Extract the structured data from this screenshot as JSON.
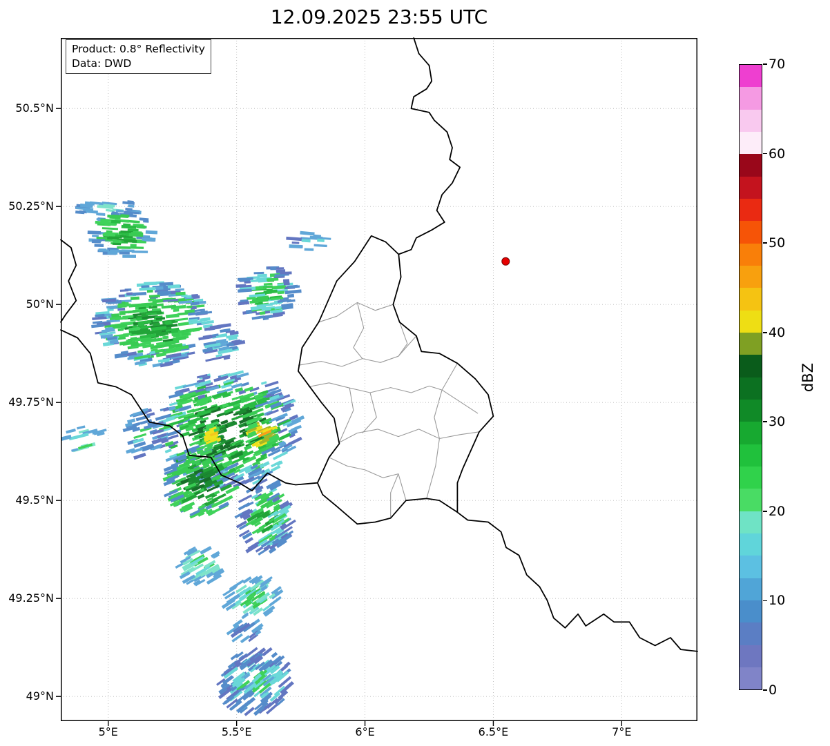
{
  "title": "12.09.2025 23:55 UTC",
  "info_box": {
    "line1": "Product: 0.8° Reflectivity",
    "line2": "Data: DWD"
  },
  "colorbar": {
    "label": "dBZ",
    "min": 0,
    "max": 70,
    "ticks": [
      {
        "label": "0",
        "value": 0
      },
      {
        "label": "10",
        "value": 10
      },
      {
        "label": "20",
        "value": 20
      },
      {
        "label": "30",
        "value": 30
      },
      {
        "label": "40",
        "value": 40
      },
      {
        "label": "50",
        "value": 50
      },
      {
        "label": "60",
        "value": 60
      },
      {
        "label": "70",
        "value": 70
      }
    ],
    "colors": [
      "#8084c8",
      "#6e77c0",
      "#5b7ec4",
      "#4a8ecb",
      "#50a5d7",
      "#5cc0e2",
      "#60d5da",
      "#6fe3c5",
      "#49dc64",
      "#30d24b",
      "#20c13c",
      "#17a930",
      "#108a27",
      "#0c7121",
      "#0a5c1b",
      "#7fa023",
      "#eede14",
      "#f5c312",
      "#f8a00e",
      "#f97f09",
      "#f65407",
      "#ea2a12",
      "#c4131e",
      "#99071a",
      "#fdedf9",
      "#f9c9ef",
      "#f59ae3",
      "#ee3fd0"
    ]
  },
  "map": {
    "extent": {
      "lon_min": 4.815,
      "lon_max": 7.295,
      "lat_min": 48.937,
      "lat_max": 50.68
    },
    "lat_ticks": [
      {
        "label": "50.5°N",
        "value": 50.5
      },
      {
        "label": "50.25°N",
        "value": 50.25
      },
      {
        "label": "50°N",
        "value": 50.0
      },
      {
        "label": "49.75°N",
        "value": 49.75
      },
      {
        "label": "49.5°N",
        "value": 49.5
      },
      {
        "label": "49.25°N",
        "value": 49.25
      },
      {
        "label": "49°N",
        "value": 49.0
      }
    ],
    "lon_ticks": [
      {
        "label": "5°E",
        "value": 5.0
      },
      {
        "label": "5.5°E",
        "value": 5.5
      },
      {
        "label": "6°E",
        "value": 6.0
      },
      {
        "label": "6.5°E",
        "value": 6.5
      },
      {
        "label": "7°E",
        "value": 7.0
      }
    ],
    "grid_color": "#a8a8a8",
    "radar_site": {
      "lon": 6.548,
      "lat": 50.11,
      "color": "#e60000",
      "edge": "#6e0000"
    },
    "borders": {
      "country_color": "#000000",
      "district_color": "#9a9a9a",
      "country": [
        [
          [
            6.19,
            50.68
          ],
          [
            6.21,
            50.64
          ],
          [
            6.25,
            50.61
          ],
          [
            6.26,
            50.57
          ],
          [
            6.24,
            50.55
          ],
          [
            6.19,
            50.53
          ],
          [
            6.18,
            50.5
          ],
          [
            6.25,
            50.49
          ],
          [
            6.27,
            50.47
          ],
          [
            6.32,
            50.44
          ],
          [
            6.34,
            50.4
          ],
          [
            6.33,
            50.37
          ],
          [
            6.37,
            50.35
          ],
          [
            6.34,
            50.31
          ],
          [
            6.3,
            50.28
          ],
          [
            6.28,
            50.24
          ],
          [
            6.31,
            50.21
          ],
          [
            6.26,
            50.19
          ],
          [
            6.2,
            50.17
          ],
          [
            6.18,
            50.14
          ],
          [
            6.131,
            50.128
          ]
        ],
        [
          [
            6.131,
            50.128
          ],
          [
            6.14,
            50.07
          ],
          [
            6.11,
            50.0
          ],
          [
            6.135,
            49.955
          ],
          [
            6.2,
            49.92
          ],
          [
            6.22,
            49.88
          ],
          [
            6.29,
            49.875
          ],
          [
            6.36,
            49.85
          ],
          [
            6.43,
            49.81
          ],
          [
            6.48,
            49.77
          ],
          [
            6.5,
            49.715
          ],
          [
            6.445,
            49.675
          ],
          [
            6.38,
            49.58
          ],
          [
            6.36,
            49.545
          ],
          [
            6.36,
            49.47
          ],
          [
            6.29,
            49.5
          ],
          [
            6.24,
            49.505
          ],
          [
            6.16,
            49.5
          ],
          [
            6.1,
            49.455
          ],
          [
            6.04,
            49.445
          ],
          [
            5.97,
            49.44
          ],
          [
            5.89,
            49.485
          ],
          [
            5.835,
            49.515
          ],
          [
            5.815,
            49.545
          ],
          [
            5.86,
            49.61
          ],
          [
            5.9,
            49.645
          ],
          [
            5.88,
            49.71
          ],
          [
            5.83,
            49.75
          ],
          [
            5.74,
            49.83
          ],
          [
            5.755,
            49.89
          ],
          [
            5.82,
            49.955
          ],
          [
            5.89,
            50.06
          ],
          [
            5.96,
            50.11
          ],
          [
            6.025,
            50.175
          ],
          [
            6.08,
            50.16
          ],
          [
            6.131,
            50.128
          ]
        ],
        [
          [
            4.815,
            49.935
          ],
          [
            4.88,
            49.915
          ],
          [
            4.93,
            49.875
          ],
          [
            4.96,
            49.8
          ],
          [
            5.03,
            49.79
          ],
          [
            5.09,
            49.77
          ],
          [
            5.16,
            49.7
          ],
          [
            5.24,
            49.69
          ],
          [
            5.29,
            49.665
          ],
          [
            5.315,
            49.615
          ],
          [
            5.4,
            49.61
          ],
          [
            5.44,
            49.565
          ],
          [
            5.51,
            49.545
          ],
          [
            5.56,
            49.525
          ],
          [
            5.62,
            49.57
          ],
          [
            5.69,
            49.545
          ],
          [
            5.73,
            49.54
          ],
          [
            5.815,
            49.545
          ]
        ],
        [
          [
            4.815,
            50.165
          ],
          [
            4.855,
            50.145
          ],
          [
            4.875,
            50.1
          ],
          [
            4.845,
            50.06
          ],
          [
            4.875,
            50.01
          ],
          [
            4.835,
            49.975
          ],
          [
            4.815,
            49.955
          ]
        ],
        [
          [
            6.36,
            49.47
          ],
          [
            6.4,
            49.45
          ],
          [
            6.48,
            49.445
          ],
          [
            6.53,
            49.42
          ],
          [
            6.55,
            49.38
          ],
          [
            6.6,
            49.36
          ],
          [
            6.63,
            49.31
          ],
          [
            6.68,
            49.28
          ],
          [
            6.71,
            49.245
          ],
          [
            6.735,
            49.2
          ],
          [
            6.78,
            49.175
          ],
          [
            6.83,
            49.21
          ],
          [
            6.86,
            49.18
          ],
          [
            6.93,
            49.21
          ],
          [
            6.97,
            49.19
          ],
          [
            7.03,
            49.19
          ],
          [
            7.07,
            49.15
          ],
          [
            7.13,
            49.13
          ],
          [
            7.19,
            49.15
          ],
          [
            7.23,
            49.12
          ],
          [
            7.295,
            49.115
          ]
        ]
      ],
      "districts": [
        [
          [
            5.82,
            49.955
          ],
          [
            5.89,
            49.97
          ],
          [
            5.97,
            50.005
          ],
          [
            6.04,
            49.985
          ],
          [
            6.11,
            50.0
          ]
        ],
        [
          [
            5.74,
            49.845
          ],
          [
            5.83,
            49.855
          ],
          [
            5.91,
            49.842
          ],
          [
            5.99,
            49.862
          ],
          [
            6.06,
            49.852
          ],
          [
            6.13,
            49.868
          ],
          [
            6.2,
            49.92
          ]
        ],
        [
          [
            5.97,
            50.005
          ],
          [
            5.995,
            49.94
          ],
          [
            5.955,
            49.89
          ],
          [
            5.99,
            49.862
          ]
        ],
        [
          [
            5.78,
            49.79
          ],
          [
            5.86,
            49.8
          ],
          [
            5.94,
            49.787
          ],
          [
            6.02,
            49.775
          ],
          [
            6.1,
            49.788
          ],
          [
            6.18,
            49.775
          ],
          [
            6.25,
            49.792
          ],
          [
            6.3,
            49.782
          ],
          [
            6.36,
            49.85
          ]
        ],
        [
          [
            5.9,
            49.648
          ],
          [
            5.97,
            49.672
          ],
          [
            6.05,
            49.682
          ],
          [
            6.13,
            49.663
          ],
          [
            6.21,
            49.682
          ],
          [
            6.29,
            49.658
          ],
          [
            6.37,
            49.668
          ],
          [
            6.445,
            49.675
          ]
        ],
        [
          [
            5.86,
            49.61
          ],
          [
            5.93,
            49.588
          ],
          [
            6.0,
            49.578
          ],
          [
            6.07,
            49.558
          ],
          [
            6.13,
            49.568
          ],
          [
            6.16,
            49.5
          ]
        ],
        [
          [
            6.3,
            49.782
          ],
          [
            6.27,
            49.712
          ],
          [
            6.29,
            49.658
          ],
          [
            6.275,
            49.588
          ],
          [
            6.24,
            49.505
          ]
        ],
        [
          [
            6.02,
            49.775
          ],
          [
            6.045,
            49.712
          ],
          [
            5.99,
            49.672
          ]
        ],
        [
          [
            6.13,
            49.868
          ],
          [
            6.165,
            49.9
          ],
          [
            6.135,
            49.955
          ]
        ],
        [
          [
            6.3,
            49.782
          ],
          [
            6.37,
            49.752
          ],
          [
            6.44,
            49.722
          ]
        ],
        [
          [
            6.13,
            49.568
          ],
          [
            6.1,
            49.52
          ],
          [
            6.1,
            49.455
          ]
        ],
        [
          [
            5.94,
            49.787
          ],
          [
            5.955,
            49.73
          ],
          [
            5.9,
            49.648
          ]
        ]
      ]
    }
  },
  "radar_echoes": {
    "clusters": [
      {
        "seed": 11,
        "lon": 5.008,
        "lat": 50.245,
        "rx_deg": 0.148,
        "ry_deg": 0.022,
        "n": 22,
        "core": [
          "#63d6d6",
          "#78e2c8"
        ],
        "mid": [
          "#58a3d6"
        ],
        "outer": [
          "#4c86c8"
        ]
      },
      {
        "seed": 12,
        "lon": 5.056,
        "lat": 50.183,
        "rx_deg": 0.114,
        "ry_deg": 0.066,
        "n": 90,
        "core": [
          "#1fb83a",
          "#17a02e"
        ],
        "mid": [
          "#2fc94a",
          "#35d052"
        ],
        "outer": [
          "#58a3d6",
          "#4c86c8"
        ]
      },
      {
        "seed": 13,
        "lon": 5.177,
        "lat": 49.95,
        "rx_deg": 0.222,
        "ry_deg": 0.106,
        "n": 300,
        "core": [
          "#17a02e",
          "#1fb83a",
          "#0f8426"
        ],
        "mid": [
          "#2fc94a",
          "#35d052"
        ],
        "outer": [
          "#4c86c8",
          "#58a3d6",
          "#5b6fbe",
          "#63d6d6"
        ]
      },
      {
        "seed": 14,
        "lon": 5.44,
        "lat": 49.901,
        "rx_deg": 0.067,
        "ry_deg": 0.048,
        "n": 40,
        "core": [
          "#58a3d6"
        ],
        "mid": [
          "#4c86c8",
          "#63d6d6"
        ],
        "outer": [
          "#5b6fbe"
        ]
      },
      {
        "seed": 15,
        "lon": 5.62,
        "lat": 50.03,
        "rx_deg": 0.108,
        "ry_deg": 0.068,
        "n": 95,
        "core": [
          "#1fb83a",
          "#2fc94a"
        ],
        "mid": [
          "#35d052",
          "#63d6d6"
        ],
        "outer": [
          "#4c86c8",
          "#5b6fbe"
        ]
      },
      {
        "seed": 16,
        "lon": 5.79,
        "lat": 50.16,
        "rx_deg": 0.086,
        "ry_deg": 0.031,
        "n": 14,
        "core": [
          "#63d6d6"
        ],
        "mid": [
          "#58a3d6"
        ],
        "outer": [
          "#5b6fbe"
        ]
      },
      {
        "seed": 17,
        "lon": 5.466,
        "lat": 49.682,
        "rx_deg": 0.274,
        "ry_deg": 0.148,
        "n": 430,
        "core": [
          "#17a02e",
          "#0f8426",
          "#0b671e"
        ],
        "mid": [
          "#2fc94a",
          "#35d052",
          "#1fb83a"
        ],
        "outer": [
          "#4c86c8",
          "#58a3d6",
          "#5b6fbe",
          "#63d6d6"
        ]
      },
      {
        "seed": 18,
        "lon": 5.405,
        "lat": 49.668,
        "rx_deg": 0.02,
        "ry_deg": 0.026,
        "n": 22,
        "core": [
          "#efe012",
          "#f4c411"
        ],
        "mid": [
          "#efe012",
          "#9fb31c"
        ],
        "outer": [
          "#35d052"
        ]
      },
      {
        "seed": 19,
        "lon": 5.597,
        "lat": 49.668,
        "rx_deg": 0.051,
        "ry_deg": 0.044,
        "n": 40,
        "core": [
          "#efe012",
          "#f4c411",
          "#f89d0c"
        ],
        "mid": [
          "#efe012",
          "#9fb31c"
        ],
        "outer": [
          "#35d052",
          "#2fc94a"
        ]
      },
      {
        "seed": 20,
        "lon": 4.904,
        "lat": 49.656,
        "rx_deg": 0.078,
        "ry_deg": 0.033,
        "n": 16,
        "core": [
          "#63d6d6"
        ],
        "mid": [
          "#78e2c8",
          "#35d052"
        ],
        "outer": [
          "#58a3d6"
        ]
      },
      {
        "seed": 21,
        "lon": 5.139,
        "lat": 49.668,
        "rx_deg": 0.071,
        "ry_deg": 0.067,
        "n": 35,
        "core": [
          "#35d052",
          "#63d6d6"
        ],
        "mid": [
          "#4c86c8"
        ],
        "outer": [
          "#5b6fbe",
          "#58a3d6"
        ]
      },
      {
        "seed": 22,
        "lon": 5.36,
        "lat": 49.55,
        "rx_deg": 0.132,
        "ry_deg": 0.091,
        "n": 150,
        "core": [
          "#0b671e",
          "#0f8426"
        ],
        "mid": [
          "#17a02e",
          "#2fc94a"
        ],
        "outer": [
          "#4c86c8",
          "#35d052"
        ]
      },
      {
        "seed": 23,
        "lon": 5.613,
        "lat": 49.458,
        "rx_deg": 0.099,
        "ry_deg": 0.09,
        "n": 110,
        "core": [
          "#17a02e",
          "#2fc94a"
        ],
        "mid": [
          "#35d052",
          "#63d6d6"
        ],
        "outer": [
          "#4c86c8",
          "#5b6fbe"
        ]
      },
      {
        "seed": 24,
        "lon": 5.363,
        "lat": 49.335,
        "rx_deg": 0.081,
        "ry_deg": 0.048,
        "n": 35,
        "core": [
          "#63d6d6",
          "#35d052"
        ],
        "mid": [
          "#78e2c8"
        ],
        "outer": [
          "#58a3d6"
        ]
      },
      {
        "seed": 25,
        "lon": 5.568,
        "lat": 49.25,
        "rx_deg": 0.108,
        "ry_deg": 0.051,
        "n": 60,
        "core": [
          "#2fc94a",
          "#35d052"
        ],
        "mid": [
          "#63d6d6",
          "#78e2c8"
        ],
        "outer": [
          "#58a3d6"
        ]
      },
      {
        "seed": 26,
        "lon": 5.536,
        "lat": 49.168,
        "rx_deg": 0.058,
        "ry_deg": 0.025,
        "n": 16,
        "core": [
          "#4c86c8"
        ],
        "mid": [
          "#5b6fbe"
        ],
        "outer": [
          "#58a3d6"
        ]
      },
      {
        "seed": 27,
        "lon": 5.577,
        "lat": 49.039,
        "rx_deg": 0.144,
        "ry_deg": 0.079,
        "n": 150,
        "core": [
          "#58a3d6",
          "#63d6d6",
          "#35d052"
        ],
        "mid": [
          "#4c86c8",
          "#63d6d6"
        ],
        "outer": [
          "#5b6fbe",
          "#4c86c8"
        ]
      }
    ]
  }
}
